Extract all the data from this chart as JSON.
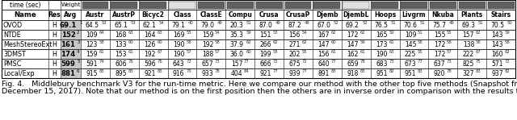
{
  "title_line1": "Fig. 4.   Middlebury benchmark V3 for the run-time metric. Here we compare our method with the other top five methods (Snapshot from website on",
  "title_line2": "December 15, 2017). Note that our method is on the first position then the others are in inverse order in comparison with the results that are shown in Fig. 3.",
  "col_header_row2": [
    "Name",
    "Res",
    "Avg",
    "Austr",
    "AustrP",
    "Bicyc2",
    "Class",
    "ClassE",
    "Compu",
    "Crusa",
    "CrusaP",
    "Djemb",
    "DjembL",
    "Hoops",
    "Livgrm",
    "Nkuba",
    "Plants",
    "Stairs"
  ],
  "rows": [
    {
      "name": "OVOD",
      "res": "H",
      "avg": "69.1",
      "avg_rank": "1",
      "vals": [
        "64.5",
        "52",
        "65.1",
        "53",
        "62.1",
        "54",
        "79.1",
        "40",
        "79.0",
        "49",
        "20.3",
        "51",
        "87.0",
        "49",
        "87.2",
        "49",
        "67.0",
        "52",
        "69.2",
        "52",
        "76.5",
        "51",
        "70.6",
        "51",
        "75.7",
        "49",
        "69.3",
        "51",
        "70.5",
        "50"
      ]
    },
    {
      "name": "NTDE",
      "res": "H",
      "avg": "152",
      "avg_rank": "2",
      "vals": [
        "109",
        "64",
        "168",
        "63",
        "164",
        "63",
        "169",
        "55",
        "159",
        "54",
        "35.3",
        "59",
        "151",
        "53",
        "156",
        "54",
        "167",
        "62",
        "172",
        "62",
        "165",
        "50",
        "109",
        "51",
        "155",
        "55",
        "157",
        "62",
        "143",
        "59"
      ]
    },
    {
      "name": "MeshStereoExt",
      "res": "H",
      "avg": "161",
      "avg_rank": "3",
      "vals": [
        "123",
        "58",
        "133",
        "60",
        "126",
        "60",
        "190",
        "58",
        "192",
        "58",
        "37.9",
        "62",
        "266",
        "62",
        "271",
        "62",
        "147",
        "60",
        "147",
        "59",
        "173",
        "61",
        "145",
        "58",
        "172",
        "58",
        "138",
        "58",
        "143",
        "58"
      ]
    },
    {
      "name": "3DMST",
      "res": "H",
      "avg": "174",
      "avg_rank": "4",
      "vals": [
        "159",
        "61",
        "153",
        "61",
        "192",
        "67",
        "190",
        "57",
        "188",
        "57",
        "36.0",
        "60",
        "199",
        "55",
        "202",
        "55",
        "156",
        "61",
        "162",
        "61",
        "190",
        "63",
        "225",
        "55",
        "172",
        "57",
        "222",
        "67",
        "160",
        "62"
      ]
    },
    {
      "name": "PMSC",
      "res": "H",
      "avg": "599",
      "avg_rank": "5",
      "vals": [
        "591",
        "74",
        "606",
        "76",
        "596",
        "76",
        "643",
        "72",
        "657",
        "73",
        "157",
        "77",
        "666",
        "72",
        "675",
        "72",
        "640",
        "77",
        "659",
        "78",
        "683",
        "73",
        "673",
        "77",
        "637",
        "73",
        "825",
        "75",
        "571",
        "72"
      ]
    },
    {
      "name": "Local/Exp",
      "res": "H",
      "avg": "881",
      "avg_rank": "6",
      "vals": [
        "915",
        "83",
        "895",
        "83",
        "921",
        "83",
        "916",
        "70",
        "933",
        "78",
        "404",
        "84",
        "921",
        "77",
        "939",
        "77",
        "891",
        "83",
        "918",
        "83",
        "951",
        "82",
        "951",
        "83",
        "920",
        "78",
        "327",
        "83",
        "937",
        "82"
      ]
    }
  ],
  "bar_colors": [
    "#606060",
    "#606060",
    "#606060",
    "#e0e0e0",
    "#606060",
    "#606060",
    "#606060",
    "#606060",
    "#606060",
    "#e0e0e0",
    "#606060",
    "#606060",
    "#606060",
    "#606060",
    "#606060"
  ],
  "avg_highlight_color": "#c8c8c8",
  "fig_caption_fontsize": 6.8
}
